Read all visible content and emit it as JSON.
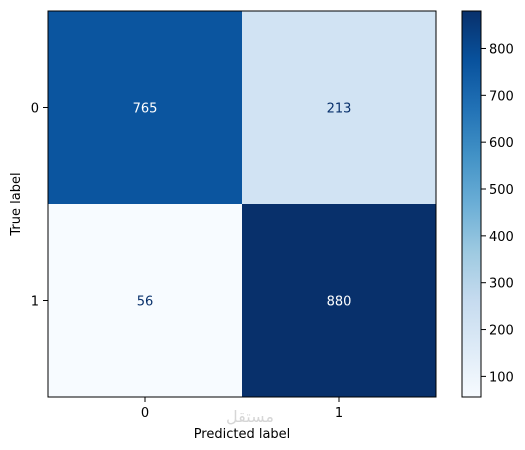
{
  "chart_data": {
    "type": "heatmap",
    "xlabel": "Predicted label",
    "ylabel": "True label",
    "x_ticks": [
      "0",
      "1"
    ],
    "y_ticks": [
      "0",
      "1"
    ],
    "matrix": [
      [
        765,
        213
      ],
      [
        56,
        880
      ]
    ],
    "colormap": "Blues",
    "colorbar": {
      "min": 56,
      "max": 880,
      "ticks": [
        100,
        200,
        300,
        400,
        500,
        600,
        700,
        800
      ]
    },
    "colors": {
      "low": "#f7fbff",
      "high": "#08306b",
      "text_dark_cell": "#ffffff",
      "text_light_cell": "#08306b"
    }
  },
  "watermark": "مستقل"
}
